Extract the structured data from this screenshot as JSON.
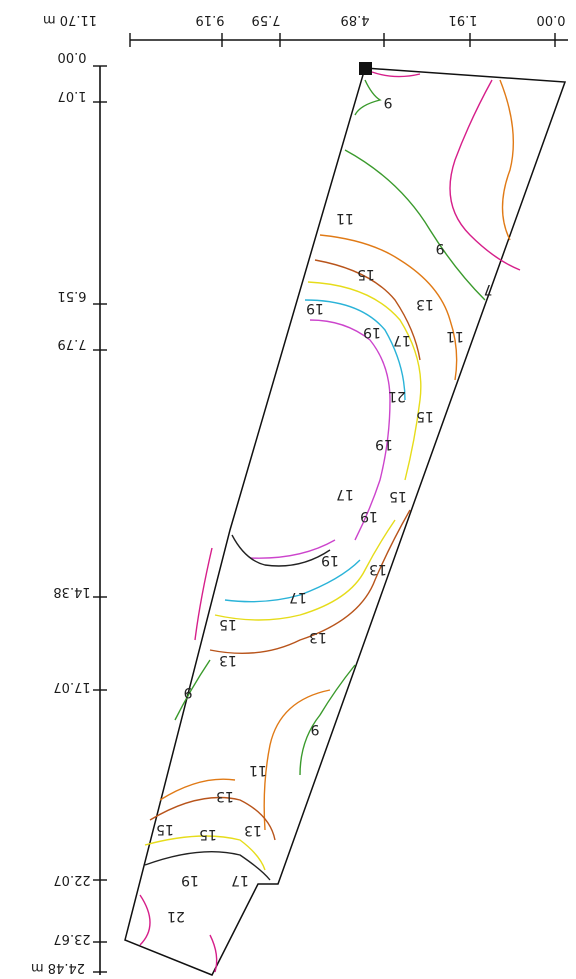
{
  "x_axis": {
    "ticks": [
      "0.00",
      "1.91",
      "4.89",
      "7.59",
      "9.19",
      "11.70 m"
    ]
  },
  "y_axis": {
    "ticks": [
      "0.00",
      "1.07",
      "6.51",
      "7.79",
      "14.38",
      "17.07",
      "22.07",
      "23.67",
      "24.48 m"
    ]
  },
  "isolines": {
    "labels": [
      "7",
      "9",
      "9",
      "9",
      "9",
      "11",
      "11",
      "11",
      "13",
      "13",
      "13",
      "13",
      "13",
      "13",
      "15",
      "15",
      "15",
      "15",
      "15",
      "15",
      "17",
      "17",
      "17",
      "17",
      "19",
      "19",
      "19",
      "19",
      "19",
      "19",
      "21",
      "21"
    ],
    "colors": {
      "7": "#d61f8a",
      "9": "#3a9a2c",
      "11": "#e07a16",
      "13": "#b8541b",
      "15": "#e6dc1a",
      "17": "#2ab3d8",
      "19": "#cc44cc",
      "21": "#222222"
    }
  },
  "marker": {
    "icon": "square-marker-icon",
    "color": "#111111"
  }
}
